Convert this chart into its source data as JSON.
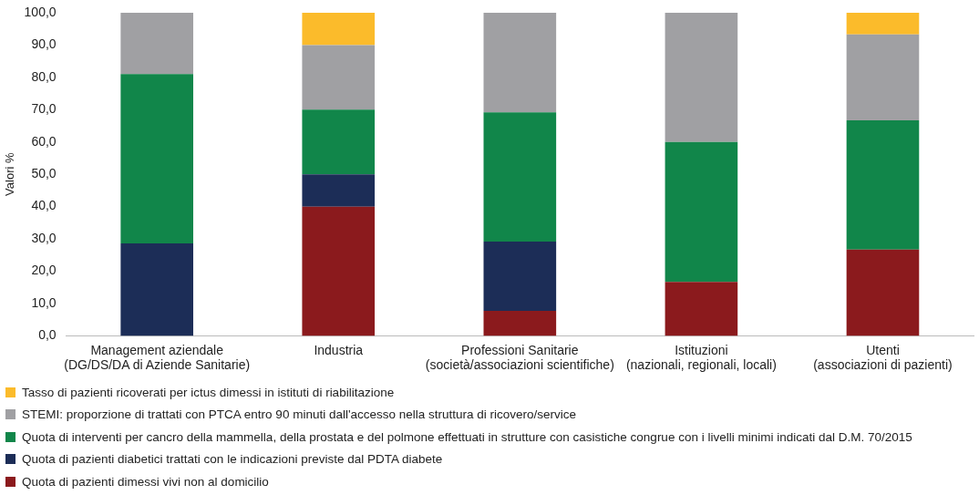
{
  "chart_data": {
    "type": "bar",
    "stacked": true,
    "ylabel": "Valori %",
    "categories": [
      "Management aziendale\n(DG/DS/DA di Aziende Sanitarie)",
      "Industria",
      "Professioni Sanitarie\n(società/associazioni scientifiche)",
      "Istituzioni\n(nazionali, regionali, locali)",
      "Utenti\n(associazioni di pazienti)"
    ],
    "series": [
      {
        "name": "Quota di pazienti dimessi vivi non al domicilio",
        "color": "#8b1a1d",
        "values": [
          0,
          40,
          7.7,
          16.7,
          26.7
        ]
      },
      {
        "name": "Quota di pazienti diabetici trattati con le indicazioni previste dal PDTA diabete",
        "color": "#1c2d57",
        "values": [
          28.6,
          10,
          21.5,
          0,
          0
        ]
      },
      {
        "name": "Quota di interventi per cancro della mammella, della prostata e del polmone effettuati in strutture con casistiche congrue con i livelli minimi indicati dal D.M. 70/2015",
        "color": "#11864a",
        "values": [
          52.4,
          20,
          40,
          43.3,
          40
        ]
      },
      {
        "name": "STEMI: proporzione di trattati con PTCA entro 90 minuti dall'accesso nella struttura di ricovero/service",
        "color": "#a0a0a3",
        "values": [
          19,
          20,
          30.8,
          40,
          26.6
        ]
      },
      {
        "name": "Tasso di pazienti ricoverati per ictus dimessi in istituti di riabilitazione",
        "color": "#fbbb2b",
        "values": [
          0,
          10,
          0,
          0,
          6.7
        ]
      }
    ],
    "ylim": [
      0,
      100
    ],
    "yticks": [
      {
        "value": 0,
        "label": "0,0"
      },
      {
        "value": 10,
        "label": "10,0"
      },
      {
        "value": 20,
        "label": "20,0"
      },
      {
        "value": 30,
        "label": "30,0"
      },
      {
        "value": 40,
        "label": "40,0"
      },
      {
        "value": 50,
        "label": "50,0"
      },
      {
        "value": 60,
        "label": "60,0"
      },
      {
        "value": 70,
        "label": "70,0"
      },
      {
        "value": 80,
        "label": "80,0"
      },
      {
        "value": 90,
        "label": "90,0"
      },
      {
        "value": 100,
        "label": "100,0"
      }
    ],
    "grid": false,
    "legend": "bottom"
  }
}
